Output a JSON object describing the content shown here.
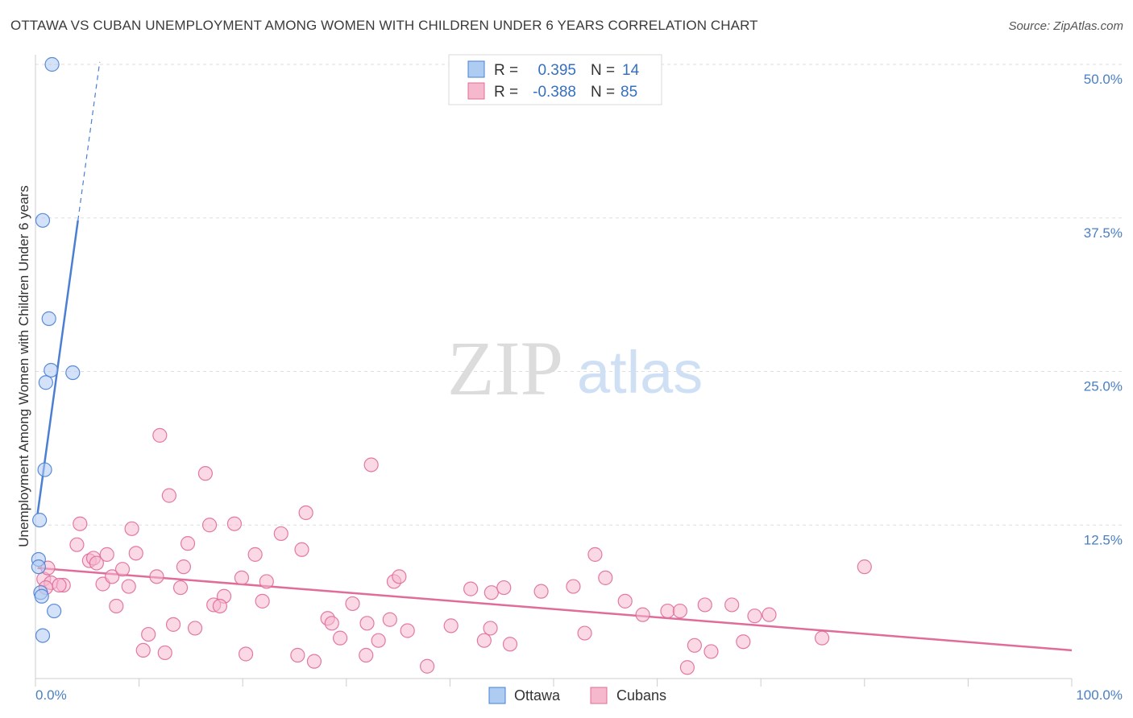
{
  "title": "OTTAWA VS CUBAN UNEMPLOYMENT AMONG WOMEN WITH CHILDREN UNDER 6 YEARS CORRELATION CHART",
  "source": "Source: ZipAtlas.com",
  "watermark": {
    "zip": "ZIP",
    "atlas": "atlas"
  },
  "colors": {
    "ottawa": "#4a7fd4",
    "ottawa_fill": "#aecbf2",
    "cubans": "#e06c9a",
    "cubans_fill": "#f6b8cd",
    "grid": "#dddddd",
    "tick": "#4a7fc4"
  },
  "legend": {
    "rows": [
      {
        "r_label": "R =",
        "r_value": "0.395",
        "n_label": "N =",
        "n_value": "14"
      },
      {
        "r_label": "R =",
        "r_value": "-0.388",
        "n_label": "N =",
        "n_value": "85"
      }
    ]
  },
  "chart_data": {
    "type": "scatter",
    "title": "OTTAWA VS CUBAN UNEMPLOYMENT AMONG WOMEN WITH CHILDREN UNDER 6 YEARS CORRELATION CHART",
    "xlabel": "",
    "ylabel": "Unemployment Among Women with Children Under 6 years",
    "xlim": [
      0,
      100
    ],
    "ylim": [
      0,
      50
    ],
    "x_tick_labels": [
      "0.0%",
      "100.0%"
    ],
    "y_ticks": [
      12.5,
      25.0,
      37.5,
      50.0
    ],
    "y_tick_labels": [
      "12.5%",
      "25.0%",
      "37.5%",
      "50.0%"
    ],
    "grid": true,
    "legend_position": "bottom",
    "series": [
      {
        "name": "Ottawa",
        "r": 0.395,
        "n": 14,
        "trend": {
          "x0": 0.2,
          "y0": 13.4,
          "x1": 4.1,
          "y1": 37.3,
          "dash_to": [
            6.2,
            50.2
          ]
        },
        "points": [
          [
            1.6,
            50.0
          ],
          [
            0.7,
            37.3
          ],
          [
            1.3,
            29.3
          ],
          [
            1.5,
            25.1
          ],
          [
            3.6,
            24.9
          ],
          [
            1.0,
            24.1
          ],
          [
            0.9,
            17.0
          ],
          [
            0.4,
            12.9
          ],
          [
            0.3,
            9.7
          ],
          [
            0.3,
            9.1
          ],
          [
            0.5,
            7.0
          ],
          [
            0.6,
            6.7
          ],
          [
            1.8,
            5.5
          ],
          [
            0.7,
            3.5
          ]
        ]
      },
      {
        "name": "Cubans",
        "r": -0.388,
        "n": 85,
        "trend": {
          "x0": 0.2,
          "y0": 9.0,
          "x1": 100.0,
          "y1": 2.3
        },
        "points": [
          [
            0.8,
            8.1
          ],
          [
            1.2,
            9.0
          ],
          [
            1.5,
            7.8
          ],
          [
            1.0,
            7.4
          ],
          [
            2.7,
            7.6
          ],
          [
            2.3,
            7.6
          ],
          [
            4.0,
            10.9
          ],
          [
            4.3,
            12.6
          ],
          [
            5.2,
            9.6
          ],
          [
            5.6,
            9.8
          ],
          [
            5.9,
            9.4
          ],
          [
            6.5,
            7.7
          ],
          [
            6.9,
            10.1
          ],
          [
            7.4,
            8.3
          ],
          [
            7.8,
            5.9
          ],
          [
            8.4,
            8.9
          ],
          [
            9.0,
            7.5
          ],
          [
            9.3,
            12.2
          ],
          [
            9.7,
            10.2
          ],
          [
            10.4,
            2.3
          ],
          [
            10.9,
            3.6
          ],
          [
            11.7,
            8.3
          ],
          [
            12.0,
            19.8
          ],
          [
            12.5,
            2.1
          ],
          [
            12.9,
            14.9
          ],
          [
            13.3,
            4.4
          ],
          [
            14.0,
            7.4
          ],
          [
            14.3,
            9.1
          ],
          [
            14.7,
            11.0
          ],
          [
            15.4,
            4.1
          ],
          [
            16.4,
            16.7
          ],
          [
            16.8,
            12.5
          ],
          [
            17.2,
            6.0
          ],
          [
            18.2,
            6.7
          ],
          [
            19.2,
            12.6
          ],
          [
            19.9,
            8.2
          ],
          [
            20.3,
            2.0
          ],
          [
            21.2,
            10.1
          ],
          [
            21.9,
            6.3
          ],
          [
            22.3,
            7.9
          ],
          [
            23.7,
            11.8
          ],
          [
            25.3,
            1.9
          ],
          [
            25.7,
            10.5
          ],
          [
            26.1,
            13.5
          ],
          [
            26.9,
            1.4
          ],
          [
            28.2,
            4.9
          ],
          [
            28.6,
            4.5
          ],
          [
            29.4,
            3.3
          ],
          [
            30.6,
            6.1
          ],
          [
            31.9,
            1.9
          ],
          [
            32.0,
            4.5
          ],
          [
            32.4,
            17.4
          ],
          [
            33.1,
            3.1
          ],
          [
            34.2,
            4.8
          ],
          [
            34.6,
            7.9
          ],
          [
            35.1,
            8.3
          ],
          [
            35.9,
            3.9
          ],
          [
            37.8,
            1.0
          ],
          [
            40.1,
            4.3
          ],
          [
            42.0,
            7.3
          ],
          [
            43.3,
            3.1
          ],
          [
            43.9,
            4.1
          ],
          [
            44.0,
            7.0
          ],
          [
            45.2,
            7.4
          ],
          [
            45.8,
            2.8
          ],
          [
            48.8,
            7.1
          ],
          [
            51.9,
            7.5
          ],
          [
            53.0,
            3.7
          ],
          [
            54.0,
            10.1
          ],
          [
            55.0,
            8.2
          ],
          [
            56.9,
            6.3
          ],
          [
            58.6,
            5.2
          ],
          [
            61.0,
            5.5
          ],
          [
            62.2,
            5.5
          ],
          [
            62.9,
            0.9
          ],
          [
            63.6,
            2.7
          ],
          [
            64.6,
            6.0
          ],
          [
            65.2,
            2.2
          ],
          [
            67.2,
            6.0
          ],
          [
            68.3,
            3.0
          ],
          [
            69.4,
            5.1
          ],
          [
            70.8,
            5.2
          ],
          [
            75.9,
            3.3
          ],
          [
            80.0,
            9.1
          ],
          [
            17.8,
            5.9
          ]
        ]
      }
    ]
  },
  "bottom_legend": [
    {
      "label": "Ottawa"
    },
    {
      "label": "Cubans"
    }
  ]
}
